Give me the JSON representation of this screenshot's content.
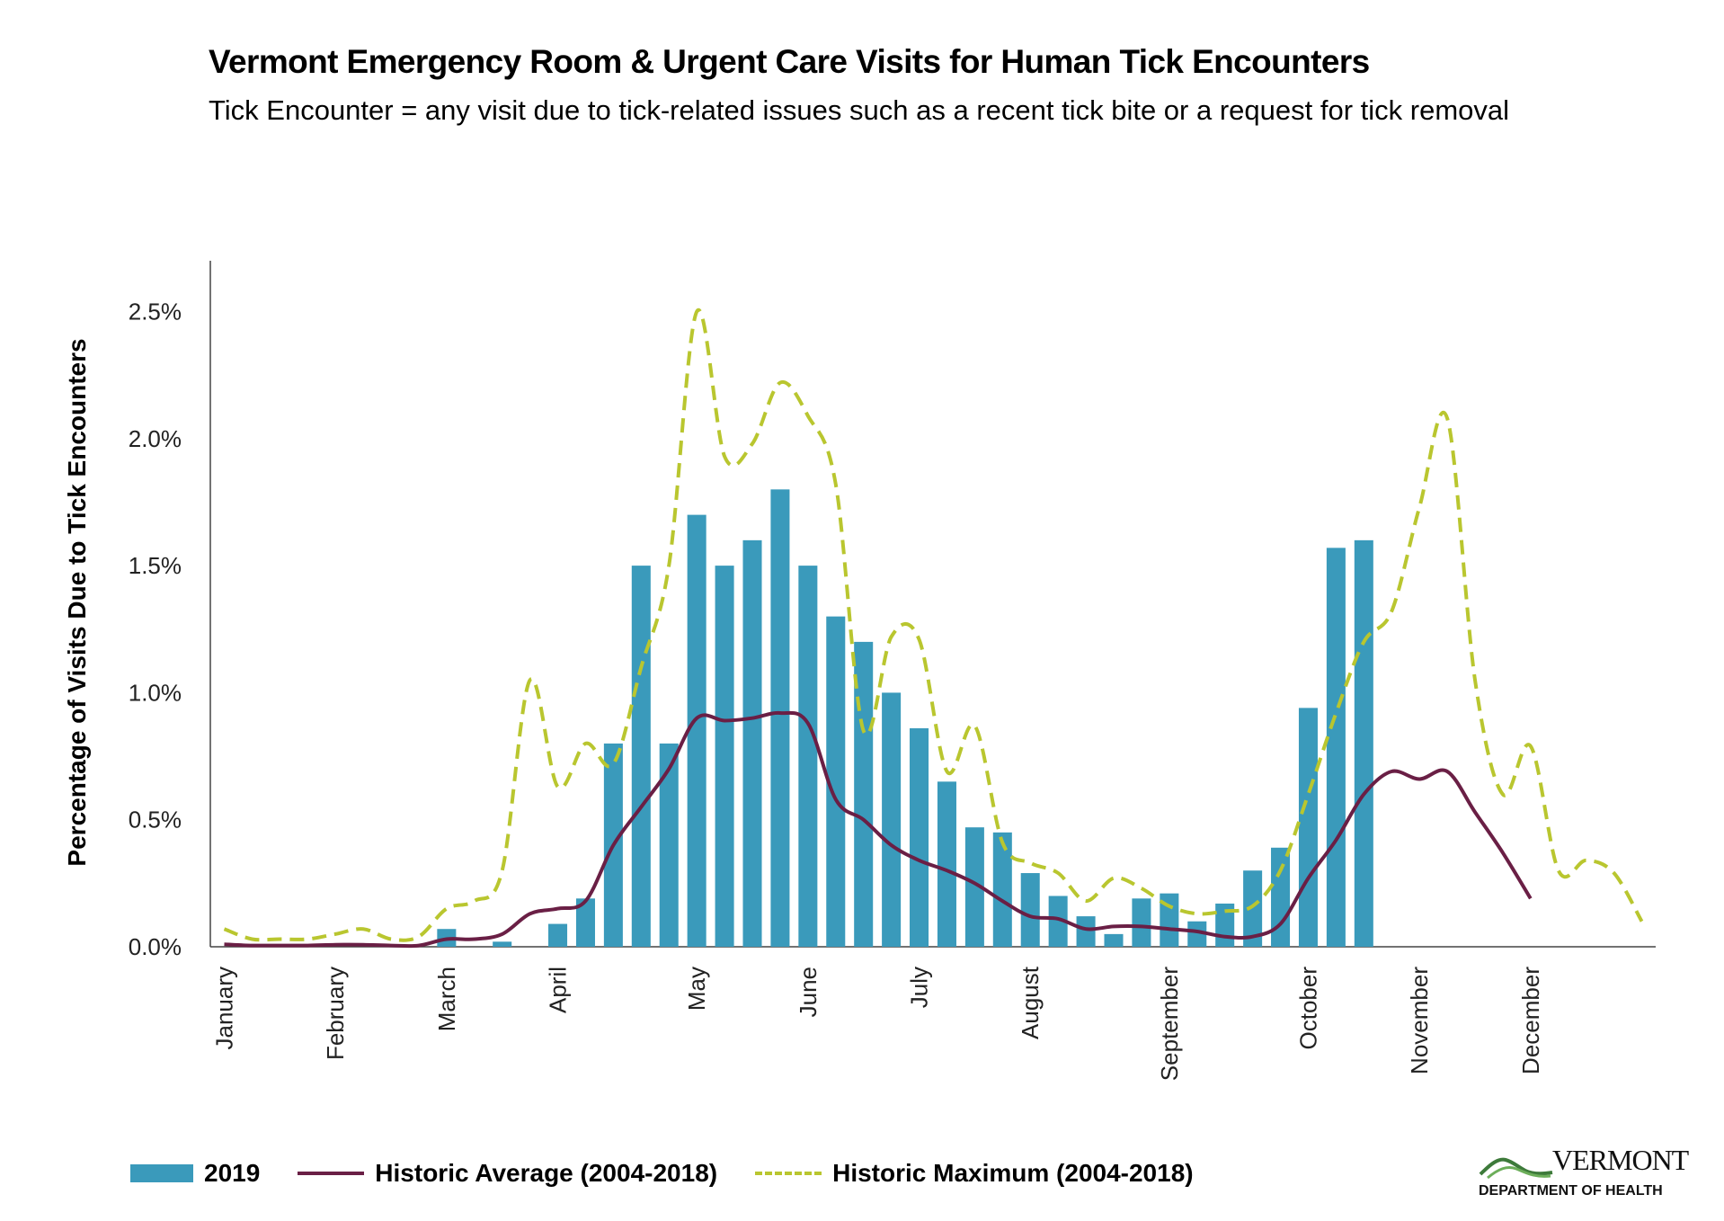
{
  "chart_data": {
    "type": "bar",
    "title": "Vermont Emergency Room & Urgent Care Visits for Human Tick Encounters",
    "subtitle": "Tick Encounter = any visit due to tick-related issues such as a recent tick bite or a request for tick removal",
    "ylabel": "Percentage of Visits Due to Tick Encounters",
    "xlabel": "",
    "ylim": [
      0,
      2.7
    ],
    "yticks": [
      0,
      0.5,
      1.0,
      1.5,
      2.0,
      2.5
    ],
    "ytick_labels": [
      "0.0%",
      "0.5%",
      "1.0%",
      "1.5%",
      "2.0%",
      "2.5%"
    ],
    "weeks_total": 52,
    "month_labels": [
      "January",
      "February",
      "March",
      "April",
      "May",
      "June",
      "July",
      "August",
      "September",
      "October",
      "November",
      "December"
    ],
    "month_start_weeks": [
      1,
      5,
      9,
      13,
      18,
      22,
      26,
      30,
      35,
      40,
      44,
      48
    ],
    "legend_position": "bottom",
    "grid": false,
    "series": [
      {
        "name": "2019",
        "kind": "bar",
        "color": "#3A9ABB",
        "x": [
          1,
          2,
          3,
          4,
          5,
          6,
          7,
          8,
          9,
          10,
          11,
          12,
          13,
          14,
          15,
          16,
          17,
          18,
          19,
          20,
          21,
          22,
          23,
          24,
          25,
          26,
          27,
          28,
          29,
          30,
          31,
          32,
          33,
          34,
          35,
          36,
          37,
          38,
          39,
          40,
          41,
          42
        ],
        "values": [
          0,
          0,
          0,
          0,
          0,
          0,
          0,
          0,
          0.07,
          0,
          0.02,
          0,
          0.09,
          0.19,
          0.8,
          1.5,
          0.8,
          1.7,
          1.5,
          1.6,
          1.8,
          1.5,
          1.3,
          1.2,
          1.0,
          0.86,
          0.65,
          0.47,
          0.45,
          0.29,
          0.2,
          0.12,
          0.05,
          0.19,
          0.21,
          0.1,
          0.17,
          0.3,
          0.39,
          0.94,
          1.57,
          1.6
        ]
      },
      {
        "name": "Historic Average (2004-2018)",
        "kind": "line",
        "color": "#6A1F45",
        "x": [
          1,
          2,
          3,
          4,
          5,
          6,
          7,
          8,
          9,
          10,
          11,
          12,
          13,
          14,
          15,
          16,
          17,
          18,
          19,
          20,
          21,
          22,
          23,
          24,
          25,
          26,
          27,
          28,
          29,
          30,
          31,
          32,
          33,
          34,
          35,
          36,
          37,
          38,
          39,
          40,
          41,
          42,
          43,
          44,
          45,
          46,
          47,
          48
        ],
        "values": [
          0.01,
          0.005,
          0.005,
          0.005,
          0.008,
          0.008,
          0.005,
          0.005,
          0.03,
          0.03,
          0.05,
          0.13,
          0.15,
          0.18,
          0.4,
          0.55,
          0.7,
          0.9,
          0.89,
          0.9,
          0.92,
          0.88,
          0.58,
          0.5,
          0.4,
          0.34,
          0.3,
          0.25,
          0.18,
          0.12,
          0.11,
          0.07,
          0.08,
          0.08,
          0.07,
          0.06,
          0.04,
          0.04,
          0.09,
          0.27,
          0.42,
          0.6,
          0.69,
          0.66,
          0.69,
          0.53,
          0.37,
          0.19
        ]
      },
      {
        "name": "Historic Maximum (2004-2018)",
        "kind": "dashed-line",
        "color": "#B9C62F",
        "x": [
          1,
          2,
          3,
          4,
          5,
          6,
          7,
          8,
          9,
          10,
          11,
          12,
          13,
          14,
          15,
          16,
          17,
          18,
          19,
          20,
          21,
          22,
          23,
          24,
          25,
          26,
          27,
          28,
          29,
          30,
          31,
          32,
          33,
          34,
          35,
          36,
          37,
          38,
          39,
          40,
          41,
          42,
          43,
          44,
          45,
          46,
          47,
          48,
          49,
          50,
          51,
          52
        ],
        "values": [
          0.07,
          0.03,
          0.03,
          0.03,
          0.05,
          0.07,
          0.03,
          0.04,
          0.15,
          0.18,
          0.3,
          1.05,
          0.63,
          0.8,
          0.72,
          1.1,
          1.5,
          2.5,
          1.93,
          1.98,
          2.22,
          2.09,
          1.82,
          0.85,
          1.22,
          1.21,
          0.69,
          0.87,
          0.41,
          0.33,
          0.29,
          0.18,
          0.27,
          0.23,
          0.16,
          0.13,
          0.14,
          0.16,
          0.3,
          0.6,
          0.92,
          1.2,
          1.32,
          1.73,
          2.08,
          1.05,
          0.6,
          0.79,
          0.3,
          0.34,
          0.29,
          0.1
        ]
      }
    ]
  },
  "legend": {
    "bar_label": "2019",
    "avg_label": "Historic Average (2004-2018)",
    "max_label": "Historic Maximum (2004-2018)"
  },
  "logo": {
    "name": "VERMONT",
    "department": "DEPARTMENT OF HEALTH"
  }
}
